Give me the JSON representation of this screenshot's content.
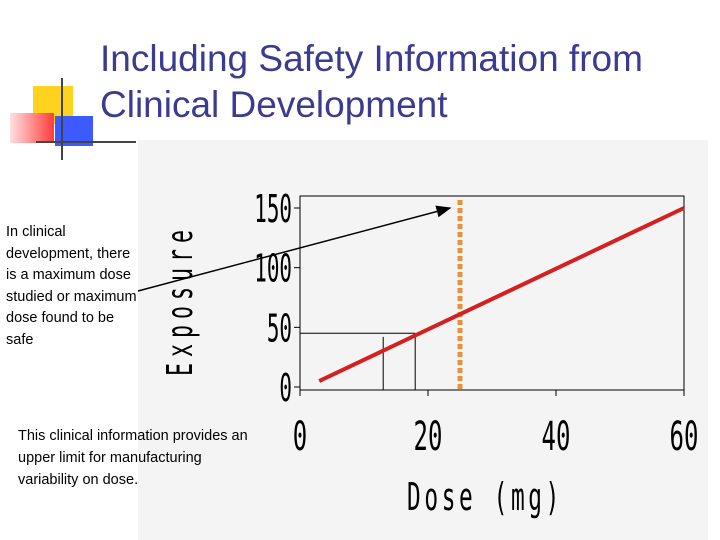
{
  "slide": {
    "title_line1": "Including Safety Information from",
    "title_line2": "Clinical Development",
    "side_note": "In clinical development, there is a maximum dose studied or maximum dose found to be safe",
    "bottom_note": "This clinical information provides an upper limit for manufacturing variability on dose."
  },
  "colors": {
    "title": "#3b3b8f",
    "series_line": "#d42020",
    "max_dose_line": "#e8913a",
    "accent_yellow": "#ffd21e",
    "accent_red": "#ff3c3c",
    "accent_blue": "#3c5aff"
  },
  "chart_data": {
    "type": "line",
    "xlabel": "Dose (mg)",
    "ylabel": "Exposure",
    "xlim": [
      0,
      60
    ],
    "ylim": [
      0,
      150
    ],
    "x_ticks": [
      "0",
      "20",
      "40",
      "60"
    ],
    "y_ticks": [
      "0",
      "50",
      "100",
      "150"
    ],
    "series": [
      {
        "x": [
          3,
          60
        ],
        "y": [
          5,
          150
        ]
      }
    ],
    "max_dose_line": {
      "x": 25
    },
    "drop_lines": [
      {
        "x": 13,
        "y": 42
      },
      {
        "x": 18,
        "y": 45
      }
    ],
    "grid": false,
    "legend": "none"
  }
}
